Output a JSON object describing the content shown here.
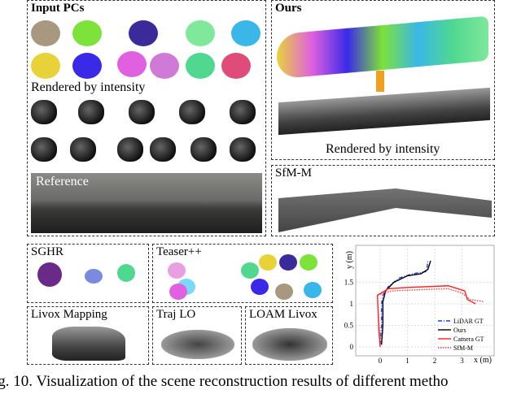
{
  "panels": {
    "input": {
      "title": "Input PCs",
      "sub": "Rendered by intensity",
      "ref": "Reference",
      "colors": [
        "#a89880",
        "#7de23a",
        "#3a2a9a",
        "#7fe89a",
        "#3ab7e8",
        "#e8d23a",
        "#3a2ae8",
        "#e060e0",
        "#d07ad8",
        "#50d890",
        "#e04c7a",
        "#c858e8"
      ]
    },
    "ours": {
      "title": "Ours",
      "sub": "Rendered by intensity"
    },
    "sfm": {
      "title": "SfM-M"
    },
    "sghr": {
      "title": "SGHR"
    },
    "teaser": {
      "title": "Teaser++"
    },
    "livox": {
      "title": "Livox Mapping"
    },
    "traj": {
      "title": "Traj LO"
    },
    "loam": {
      "title": "LOAM Livox"
    }
  },
  "chart_data": {
    "type": "line",
    "xlabel": "x (m)",
    "ylabel": "y (m)",
    "xticks": [
      0,
      1,
      2,
      3
    ],
    "yticks": [
      0,
      0.5,
      1,
      1.5
    ],
    "xlim": [
      -0.9,
      4.1
    ],
    "ylim": [
      -0.3,
      2.3
    ],
    "grid": true,
    "legend": "bottom-right",
    "series": [
      {
        "name": "LiDAR GT",
        "color": "#1a3cff",
        "style": "dashdot",
        "points": [
          [
            0,
            0.05
          ],
          [
            0.05,
            0.5
          ],
          [
            0.05,
            1.0
          ],
          [
            0.1,
            1.2
          ],
          [
            0.3,
            1.4
          ],
          [
            0.7,
            1.6
          ],
          [
            1.2,
            1.7
          ],
          [
            1.7,
            1.75
          ],
          [
            1.75,
            2.0
          ]
        ]
      },
      {
        "name": "Ours",
        "color": "#000000",
        "style": "solid",
        "points": [
          [
            0.05,
            0.05
          ],
          [
            0.1,
            0.5
          ],
          [
            0.1,
            1.05
          ],
          [
            0.2,
            1.3
          ],
          [
            0.5,
            1.5
          ],
          [
            1.0,
            1.65
          ],
          [
            1.5,
            1.7
          ],
          [
            1.75,
            1.8
          ],
          [
            1.85,
            2.0
          ]
        ]
      },
      {
        "name": "Camera GT",
        "color": "#ff2020",
        "style": "solid",
        "points": [
          [
            0,
            0
          ],
          [
            -0.05,
            0.4
          ],
          [
            -0.1,
            1.2
          ],
          [
            0.3,
            1.35
          ],
          [
            1,
            1.38
          ],
          [
            2.5,
            1.42
          ],
          [
            3.1,
            1.3
          ],
          [
            3.2,
            1.1
          ],
          [
            3.5,
            1.0
          ]
        ]
      },
      {
        "name": "SfM-M",
        "color": "#ff4040",
        "style": "dotted",
        "points": [
          [
            0,
            0.2
          ],
          [
            -0.05,
            0.6
          ],
          [
            -0.1,
            1.2
          ],
          [
            0.4,
            1.3
          ],
          [
            1.5,
            1.33
          ],
          [
            2.5,
            1.35
          ],
          [
            3,
            1.25
          ],
          [
            3.3,
            1.1
          ],
          [
            3.8,
            1.05
          ]
        ]
      }
    ]
  },
  "caption": "ig. 10.  Visualization of the scene reconstruction results of different metho"
}
